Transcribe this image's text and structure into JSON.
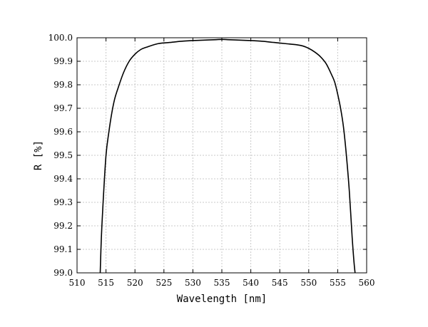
{
  "chart_data": {
    "type": "line",
    "xlabel": "Wavelength [nm]",
    "ylabel": "R [%]",
    "xlim": [
      510,
      560
    ],
    "ylim": [
      99.0,
      100.0
    ],
    "grid": true,
    "x_ticks": [
      510,
      515,
      520,
      525,
      530,
      535,
      540,
      545,
      550,
      555,
      560
    ],
    "y_ticks": [
      99.0,
      99.1,
      99.2,
      99.3,
      99.4,
      99.5,
      99.6,
      99.7,
      99.8,
      99.9,
      100.0
    ],
    "x_tick_labels": [
      "510",
      "515",
      "520",
      "525",
      "530",
      "535",
      "540",
      "545",
      "550",
      "555",
      "560"
    ],
    "y_tick_labels": [
      "99.0",
      "99.1",
      "99.2",
      "99.3",
      "99.4",
      "99.5",
      "99.6",
      "99.7",
      "99.8",
      "99.9",
      "100.0"
    ],
    "series": [
      {
        "color": "#000000",
        "x": [
          514.0,
          514.2,
          514.5,
          515.0,
          515.5,
          516.0,
          516.5,
          517.0,
          518.0,
          519.0,
          520.0,
          521.0,
          522.0,
          524.0,
          526.0,
          528.0,
          530.0,
          532.0,
          534.0,
          535.0,
          536.0,
          538.0,
          540.0,
          542.0,
          544.0,
          546.0,
          548.0,
          549.0,
          550.0,
          551.0,
          552.0,
          553.0,
          554.0,
          554.5,
          555.0,
          555.5,
          556.0,
          556.5,
          557.0,
          557.5,
          557.8,
          558.0
        ],
        "values": [
          99.0,
          99.15,
          99.3,
          99.5,
          99.6,
          99.68,
          99.74,
          99.78,
          99.85,
          99.9,
          99.93,
          99.95,
          99.96,
          99.975,
          99.98,
          99.985,
          99.988,
          99.99,
          99.992,
          99.993,
          99.992,
          99.99,
          99.988,
          99.985,
          99.98,
          99.975,
          99.97,
          99.965,
          99.955,
          99.94,
          99.92,
          99.89,
          99.84,
          99.81,
          99.76,
          99.7,
          99.62,
          99.5,
          99.35,
          99.15,
          99.05,
          99.0
        ]
      }
    ]
  }
}
